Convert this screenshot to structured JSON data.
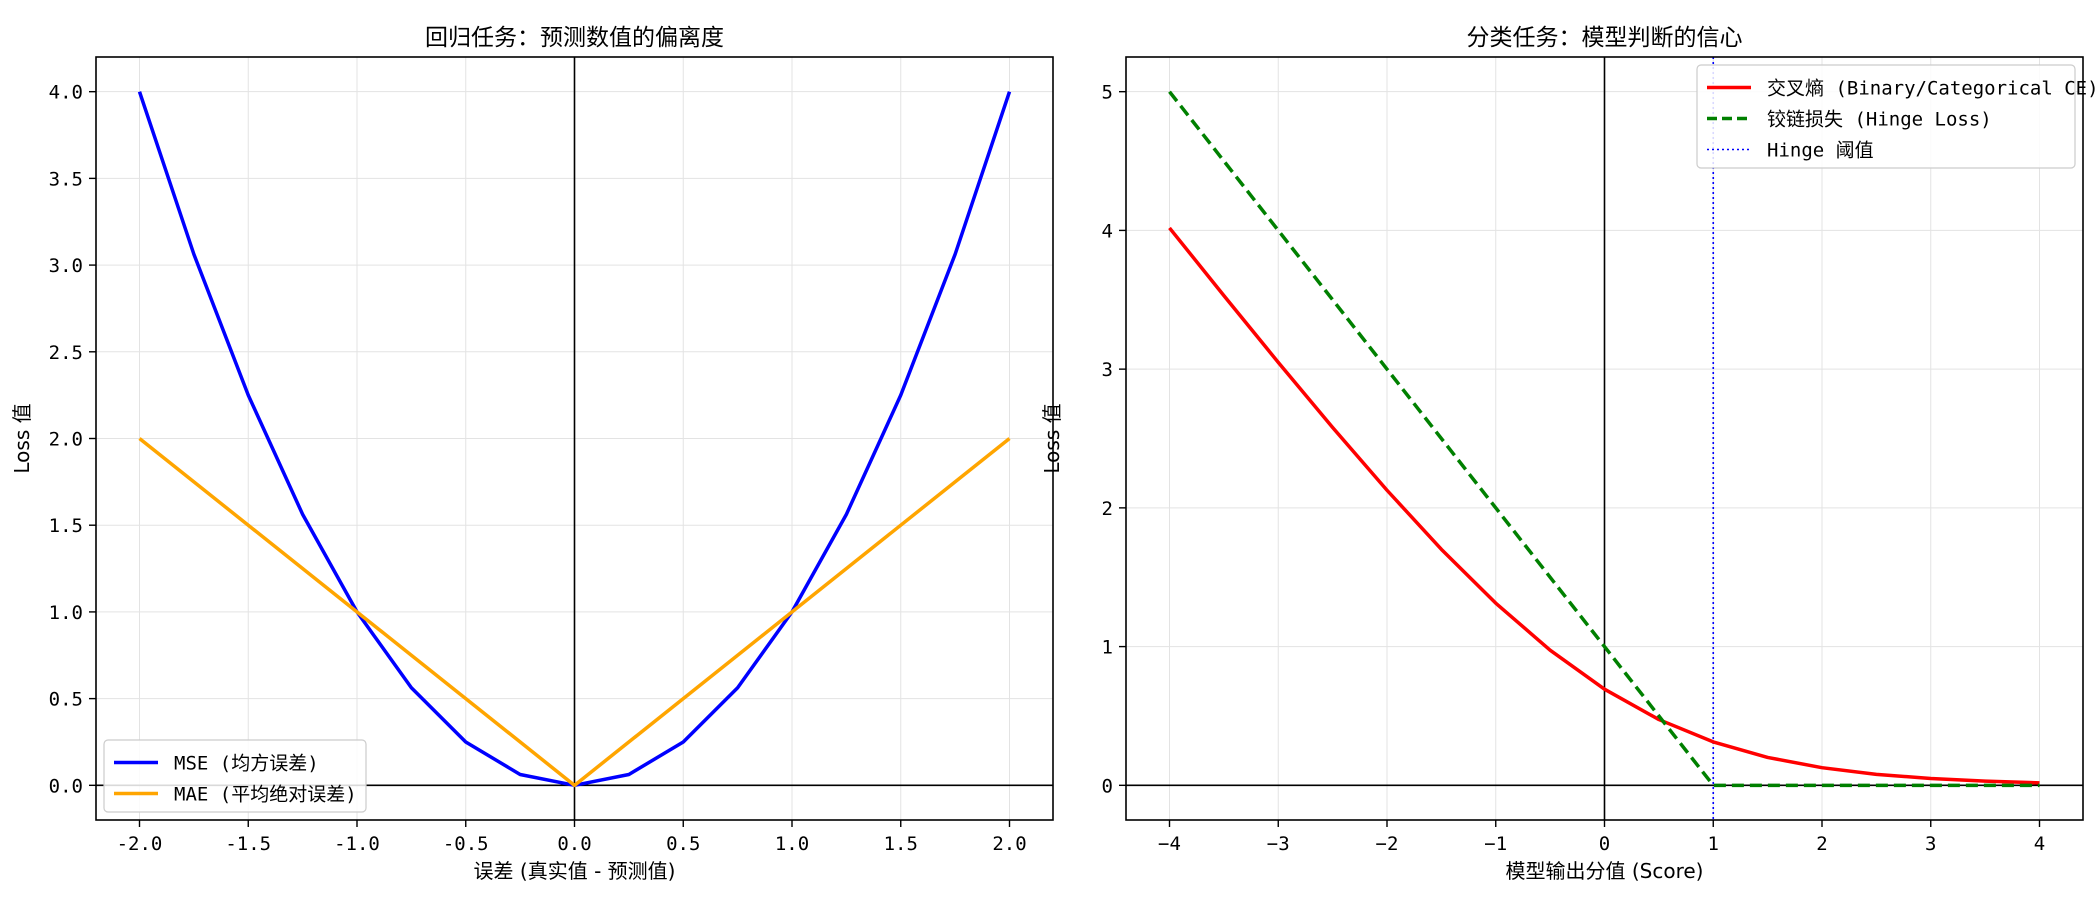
{
  "chart_data": [
    {
      "type": "line",
      "title": "回归任务：预测数值的偏离度",
      "xlabel": "误差 (真实值 - 预测值)",
      "ylabel": "Loss 值",
      "xlim": [
        -2.2,
        2.2
      ],
      "ylim": [
        -0.2,
        4.2
      ],
      "xticks": [
        -2.0,
        -1.5,
        -1.0,
        -0.5,
        0.0,
        0.5,
        1.0,
        1.5,
        2.0
      ],
      "xtick_labels": [
        "-2.0",
        "-1.5",
        "-1.0",
        "-0.5",
        "0.0",
        "0.5",
        "1.0",
        "1.5",
        "2.0"
      ],
      "yticks": [
        0.0,
        0.5,
        1.0,
        1.5,
        2.0,
        2.5,
        3.0,
        3.5,
        4.0
      ],
      "ytick_labels": [
        "0.0",
        "0.5",
        "1.0",
        "1.5",
        "2.0",
        "2.5",
        "3.0",
        "3.5",
        "4.0"
      ],
      "grid": true,
      "legend_position": "bottom-left",
      "reference_lines": {
        "x": 0,
        "y": 0,
        "color": "#000000"
      },
      "series": [
        {
          "name": "MSE (均方误差)",
          "color": "#0000ff",
          "style": "solid",
          "x": [
            -2.0,
            -1.75,
            -1.5,
            -1.25,
            -1.0,
            -0.75,
            -0.5,
            -0.25,
            0.0,
            0.25,
            0.5,
            0.75,
            1.0,
            1.25,
            1.5,
            1.75,
            2.0
          ],
          "y": [
            4.0,
            3.0625,
            2.25,
            1.5625,
            1.0,
            0.5625,
            0.25,
            0.0625,
            0.0,
            0.0625,
            0.25,
            0.5625,
            1.0,
            1.5625,
            2.25,
            3.0625,
            4.0
          ]
        },
        {
          "name": "MAE (平均绝对误差)",
          "color": "#ffa500",
          "style": "solid",
          "x": [
            -2.0,
            0.0,
            2.0
          ],
          "y": [
            2.0,
            0.0,
            2.0
          ]
        }
      ]
    },
    {
      "type": "line",
      "title": "分类任务：模型判断的信心",
      "xlabel": "模型输出分值 (Score)",
      "ylabel": "Loss 值",
      "xlim": [
        -4.4,
        4.4
      ],
      "ylim": [
        -0.25,
        5.25
      ],
      "xticks": [
        -4,
        -3,
        -2,
        -1,
        0,
        1,
        2,
        3,
        4
      ],
      "xtick_labels": [
        "−4",
        "−3",
        "−2",
        "−1",
        "0",
        "1",
        "2",
        "3",
        "4"
      ],
      "yticks": [
        0,
        1,
        2,
        3,
        4,
        5
      ],
      "ytick_labels": [
        "0",
        "1",
        "2",
        "3",
        "4",
        "5"
      ],
      "grid": true,
      "legend_position": "top-right",
      "reference_lines": {
        "x": 0,
        "y": 0,
        "color": "#000000"
      },
      "series": [
        {
          "name": "交叉熵 (Binary/Categorical CE)",
          "color": "#ff0000",
          "style": "solid",
          "x": [
            -4.0,
            -3.5,
            -3.0,
            -2.5,
            -2.0,
            -1.5,
            -1.0,
            -0.5,
            0.0,
            0.5,
            1.0,
            1.5,
            2.0,
            2.5,
            3.0,
            3.5,
            4.0
          ],
          "y": [
            4.018,
            3.53,
            3.049,
            2.579,
            2.127,
            1.701,
            1.313,
            0.974,
            0.693,
            0.474,
            0.313,
            0.201,
            0.127,
            0.079,
            0.049,
            0.03,
            0.018
          ]
        },
        {
          "name": "铰链损失 (Hinge Loss)",
          "color": "#008000",
          "style": "dashed",
          "x": [
            -4.0,
            1.0,
            4.0
          ],
          "y": [
            5.0,
            0.0,
            0.0
          ]
        }
      ],
      "vlines": [
        {
          "name": "Hinge 阈值",
          "x": 1.0,
          "color": "#0000ff",
          "style": "dotted"
        }
      ]
    }
  ]
}
